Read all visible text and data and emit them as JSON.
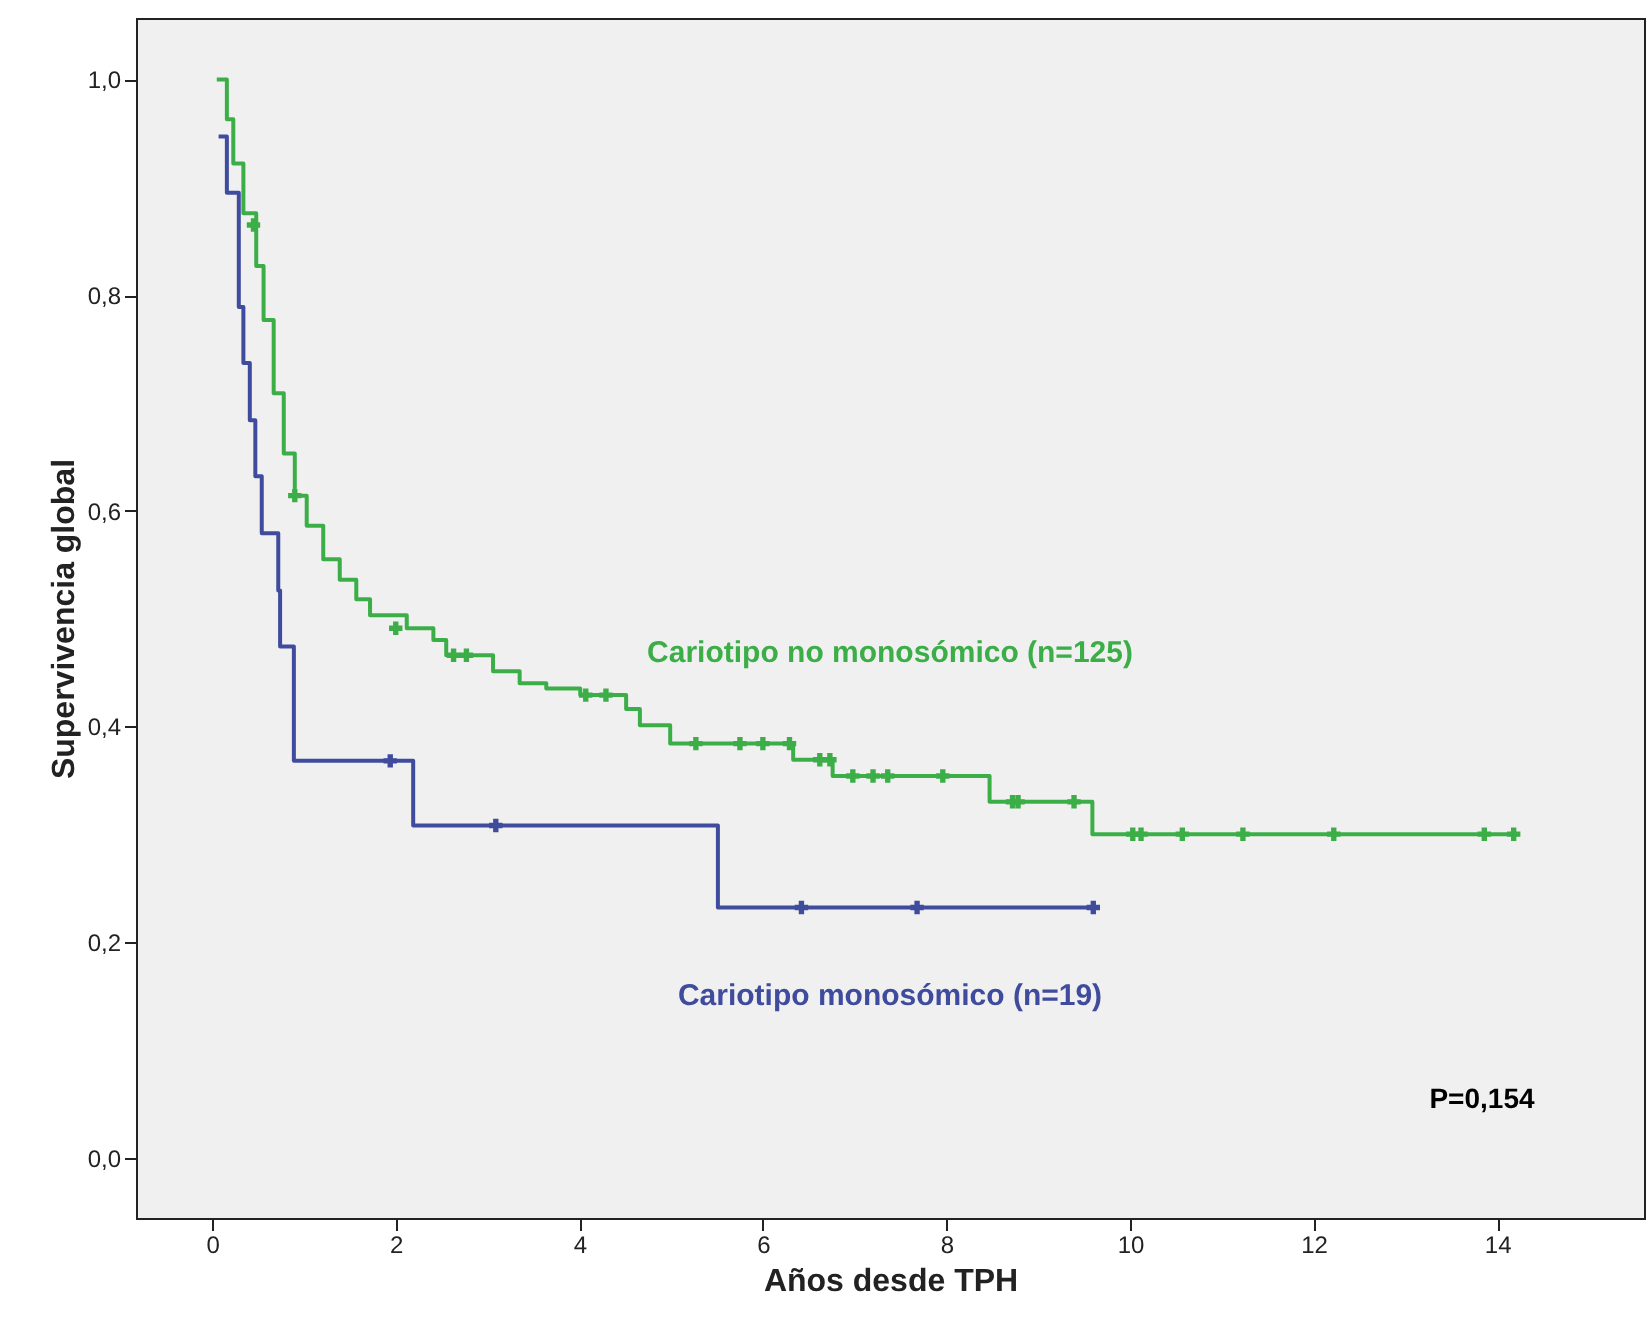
{
  "chart_data": {
    "type": "step",
    "xlabel": "Años desde TPH",
    "ylabel": "Supervivencia global",
    "xlim": [
      -0.83,
      15.6
    ],
    "ylim": [
      -0.056,
      1.057
    ],
    "xticks": [
      0,
      2,
      4,
      6,
      8,
      10,
      12,
      14
    ],
    "yticks": [
      {
        "value": 0,
        "label": "0,0"
      },
      {
        "value": 0.2,
        "label": "0,2"
      },
      {
        "value": 0.4,
        "label": "0,4"
      },
      {
        "value": 0.6,
        "label": "0,6"
      },
      {
        "value": 0.8,
        "label": "0,8"
      },
      {
        "value": 1,
        "label": "1,0"
      }
    ],
    "grid": false,
    "line_style": "solid",
    "annotations": [
      "P=0,154"
    ],
    "series": [
      {
        "name": "Cariotipo no monosómico (n=125)",
        "color": "#3cae48",
        "x": [
          0.05,
          0.16,
          0.23,
          0.34,
          0.48,
          0.56,
          0.67,
          0.78,
          0.9,
          1.03,
          1.21,
          1.39,
          1.57,
          1.72,
          2.12,
          2.41,
          2.55,
          3.06,
          3.35,
          3.64,
          4.01,
          4.51,
          4.66,
          4.99,
          6.33,
          6.76,
          8.47,
          9.59,
          14.24
        ],
        "values": [
          1.0,
          0.963,
          0.922,
          0.876,
          0.827,
          0.777,
          0.709,
          0.653,
          0.614,
          0.586,
          0.555,
          0.536,
          0.518,
          0.503,
          0.491,
          0.48,
          0.466,
          0.451,
          0.44,
          0.435,
          0.429,
          0.416,
          0.401,
          0.384,
          0.369,
          0.354,
          0.33,
          0.3,
          0.3
        ]
      },
      {
        "name": "Cariotipo monosómico (n=19)",
        "color": "#3f4c9e",
        "x": [
          0.07,
          0.16,
          0.29,
          0.34,
          0.41,
          0.47,
          0.54,
          0.72,
          0.74,
          0.89,
          2.19,
          5.51,
          9.6
        ],
        "values": [
          0.947,
          0.895,
          0.789,
          0.737,
          0.684,
          0.632,
          0.579,
          0.526,
          0.474,
          0.368,
          0.308,
          0.232,
          0.232
        ]
      },
      {
        "type": "scatter",
        "marker": "cross",
        "color": "#3cae48",
        "x": [
          0.45,
          0.9,
          2.0,
          2.63,
          2.77,
          4.07,
          4.29,
          5.27,
          5.75,
          6.0,
          6.29,
          6.62,
          6.73,
          6.98,
          7.2,
          7.36,
          7.96,
          8.72,
          8.78,
          9.39,
          10.03,
          10.12,
          10.57,
          11.23,
          12.22,
          13.86,
          14.18
        ],
        "values": [
          0.865,
          0.614,
          0.491,
          0.466,
          0.466,
          0.429,
          0.429,
          0.384,
          0.384,
          0.384,
          0.384,
          0.369,
          0.369,
          0.354,
          0.354,
          0.354,
          0.354,
          0.33,
          0.33,
          0.33,
          0.3,
          0.3,
          0.3,
          0.3,
          0.3,
          0.3,
          0.3
        ]
      },
      {
        "type": "scatter",
        "marker": "cross",
        "color": "#3f4c9e",
        "x": [
          1.94,
          3.09,
          6.42,
          7.68,
          9.6
        ],
        "values": [
          0.368,
          0.308,
          0.232,
          0.232,
          0.232
        ]
      }
    ]
  }
}
